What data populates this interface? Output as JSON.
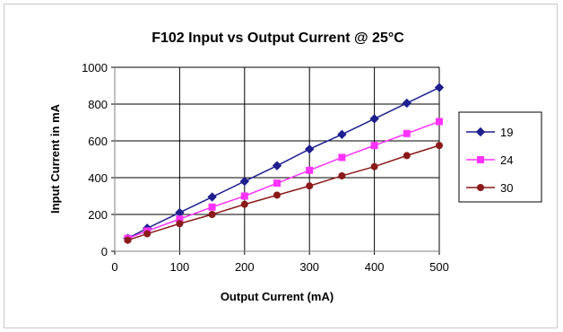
{
  "chart_data": {
    "type": "line",
    "title": "F102 Input vs Output Current @ 25°C",
    "xlabel": "Output Current (mA)",
    "ylabel": "Input Current in mA",
    "xlim": [
      0,
      500
    ],
    "ylim": [
      0,
      1000
    ],
    "x_ticks": [
      0,
      100,
      200,
      300,
      400,
      500
    ],
    "y_ticks": [
      0,
      200,
      400,
      600,
      800,
      1000
    ],
    "grid": true,
    "legend_position": "right",
    "x": [
      20,
      50,
      100,
      150,
      200,
      250,
      300,
      350,
      400,
      450,
      500
    ],
    "series": [
      {
        "name": "19",
        "color": "#1f1f8f",
        "marker": "diamond",
        "values": [
          70,
          125,
          210,
          295,
          380,
          465,
          555,
          635,
          720,
          805,
          890
        ]
      },
      {
        "name": "24",
        "color": "#ff33ff",
        "marker": "square",
        "values": [
          70,
          110,
          175,
          240,
          300,
          370,
          440,
          510,
          575,
          640,
          705
        ]
      },
      {
        "name": "30",
        "color": "#8b1a1a",
        "marker": "circle",
        "values": [
          60,
          95,
          150,
          200,
          255,
          305,
          355,
          410,
          460,
          520,
          575
        ]
      }
    ]
  }
}
